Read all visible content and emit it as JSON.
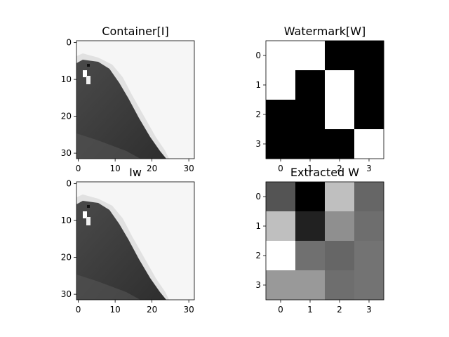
{
  "figure": {
    "background": "#ffffff"
  },
  "chart_data": [
    {
      "type": "heatmap",
      "title": "Container[I]",
      "colormap": "gray",
      "shape": [
        32,
        32
      ],
      "xticks": [
        "0",
        "10",
        "20",
        "30"
      ],
      "yticks": [
        "0",
        "10",
        "20",
        "30"
      ],
      "content": "grayscale 32x32 image: light background with a dark diagonal region on the left"
    },
    {
      "type": "heatmap",
      "title": "Watermark[W]",
      "colormap": "gray",
      "shape": [
        4,
        4
      ],
      "values": [
        [
          1,
          1,
          0,
          0
        ],
        [
          1,
          0,
          1,
          0
        ],
        [
          0,
          0,
          1,
          0
        ],
        [
          0,
          0,
          0,
          1
        ]
      ],
      "xticks": [
        "0",
        "1",
        "2",
        "3"
      ],
      "yticks": [
        "0",
        "1",
        "2",
        "3"
      ]
    },
    {
      "type": "heatmap",
      "title": "Iw",
      "colormap": "gray",
      "shape": [
        32,
        32
      ],
      "xticks": [
        "0",
        "10",
        "20",
        "30"
      ],
      "yticks": [
        "0",
        "10",
        "20",
        "30"
      ],
      "content": "watermarked image, visually identical to Container[I]"
    },
    {
      "type": "heatmap",
      "title": "Extracted W",
      "colormap": "gray",
      "shape": [
        4,
        4
      ],
      "values": [
        [
          0.33,
          0.0,
          0.75,
          0.4
        ],
        [
          0.75,
          0.13,
          0.56,
          0.43
        ],
        [
          1.0,
          0.44,
          0.4,
          0.45
        ],
        [
          0.6,
          0.6,
          0.43,
          0.45
        ]
      ],
      "xticks": [
        "0",
        "1",
        "2",
        "3"
      ],
      "yticks": [
        "0",
        "1",
        "2",
        "3"
      ]
    }
  ]
}
